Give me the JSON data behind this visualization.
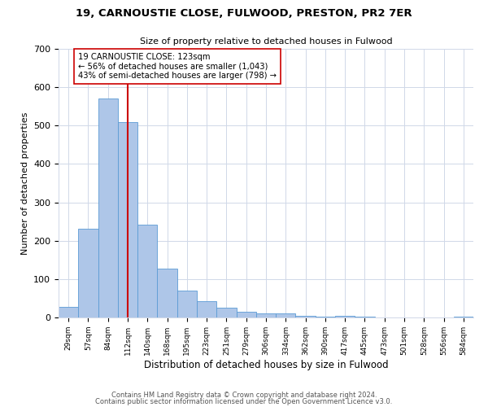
{
  "title": "19, CARNOUSTIE CLOSE, FULWOOD, PRESTON, PR2 7ER",
  "subtitle": "Size of property relative to detached houses in Fulwood",
  "xlabel": "Distribution of detached houses by size in Fulwood",
  "ylabel": "Number of detached properties",
  "bar_labels": [
    "29sqm",
    "57sqm",
    "84sqm",
    "112sqm",
    "140sqm",
    "168sqm",
    "195sqm",
    "223sqm",
    "251sqm",
    "279sqm",
    "306sqm",
    "334sqm",
    "362sqm",
    "390sqm",
    "417sqm",
    "445sqm",
    "473sqm",
    "501sqm",
    "528sqm",
    "556sqm",
    "584sqm"
  ],
  "bar_heights": [
    28,
    232,
    570,
    510,
    242,
    127,
    70,
    42,
    26,
    15,
    10,
    10,
    5,
    2,
    5,
    2,
    0,
    0,
    0,
    0,
    3
  ],
  "bar_color": "#aec6e8",
  "bar_edge_color": "#5b9bd5",
  "vline_x": 3.0,
  "vline_color": "#cc0000",
  "annotation_title": "19 CARNOUSTIE CLOSE: 123sqm",
  "annotation_line1": "← 56% of detached houses are smaller (1,043)",
  "annotation_line2": "43% of semi-detached houses are larger (798) →",
  "annotation_box_color": "#ffffff",
  "annotation_box_edge": "#cc0000",
  "ylim": [
    0,
    700
  ],
  "yticks": [
    0,
    100,
    200,
    300,
    400,
    500,
    600,
    700
  ],
  "footer1": "Contains HM Land Registry data © Crown copyright and database right 2024.",
  "footer2": "Contains public sector information licensed under the Open Government Licence v3.0.",
  "background_color": "#ffffff",
  "grid_color": "#d0d8e8"
}
